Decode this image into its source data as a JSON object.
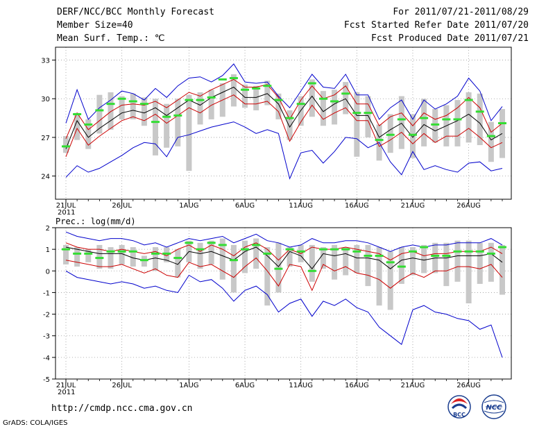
{
  "header": {
    "title": "DERF/NCC/BCC Monthly Forecast",
    "member_size": "Member Size=40",
    "variable": "Mean Surf. Temp.: ℃",
    "period": "For 2011/07/21-2011/08/29",
    "started": "Fcst Started Refer Date 2011/07/20",
    "produced": "Fcst Produced Date 2011/07/21"
  },
  "footer": {
    "url": "http://cmdp.ncc.cma.gov.cn",
    "grads": "GrADS: COLA/IGES",
    "logo1_text": "BCC",
    "logo2_text": "NCC"
  },
  "colors": {
    "max_min": "#0000cc",
    "std": "#cc0000",
    "mean": "#000000",
    "median": "#33dd33",
    "box": "#c8c8c8",
    "frame": "#000000",
    "grid": "#999999"
  },
  "chart_data": [
    {
      "type": "line",
      "title": "Mean Surf. Temp.: ℃",
      "x_start_label": "21JUL",
      "year_label": "2011",
      "xtick_labels": [
        "21JUL",
        "26JUL",
        "1AUG",
        "6AUG",
        "11AUG",
        "16AUG",
        "21AUG",
        "26AUG"
      ],
      "xtick_days": [
        0,
        5,
        11,
        16,
        21,
        26,
        31,
        36
      ],
      "ylim": [
        22.2,
        34.0
      ],
      "yticks": [
        24,
        27,
        30,
        33
      ],
      "days": 40,
      "series": [
        {
          "name": "max",
          "values": [
            28.1,
            30.7,
            28.4,
            29.3,
            29.9,
            30.6,
            30.4,
            29.9,
            30.8,
            30.1,
            31.0,
            31.6,
            31.7,
            31.3,
            31.8,
            32.7,
            31.3,
            31.2,
            31.3,
            30.2,
            29.3,
            30.6,
            31.9,
            30.9,
            30.8,
            31.9,
            30.3,
            30.3,
            28.4,
            29.3,
            29.9,
            28.4,
            29.9,
            29.2,
            29.6,
            30.2,
            31.6,
            30.6,
            28.3,
            29.4
          ]
        },
        {
          "name": "std_upper",
          "values": [
            26.9,
            28.9,
            27.6,
            28.3,
            29.0,
            29.5,
            29.6,
            29.5,
            29.8,
            29.3,
            29.9,
            30.5,
            30.2,
            30.7,
            31.1,
            31.5,
            30.9,
            30.9,
            31.1,
            30.1,
            28.4,
            29.9,
            31.0,
            30.0,
            30.3,
            31.0,
            29.6,
            29.6,
            27.9,
            28.6,
            28.9,
            27.9,
            28.9,
            28.4,
            28.7,
            29.3,
            30.1,
            29.3,
            27.4,
            28.1
          ]
        },
        {
          "name": "mean",
          "values": [
            26.1,
            28.3,
            27.0,
            27.7,
            28.3,
            28.9,
            29.1,
            28.9,
            29.3,
            28.7,
            29.3,
            29.9,
            29.5,
            30.1,
            30.5,
            30.9,
            30.1,
            30.1,
            30.4,
            29.6,
            27.8,
            29.1,
            30.2,
            29.0,
            29.6,
            30.0,
            28.7,
            28.7,
            27.0,
            27.6,
            28.1,
            27.0,
            28.0,
            27.5,
            27.9,
            28.3,
            28.8,
            28.1,
            26.8,
            27.3
          ]
        },
        {
          "name": "std_lower",
          "values": [
            25.5,
            27.7,
            26.4,
            27.1,
            27.7,
            28.3,
            28.6,
            28.3,
            28.8,
            28.1,
            28.7,
            29.3,
            28.9,
            29.5,
            29.9,
            30.3,
            29.6,
            29.6,
            29.8,
            29.0,
            26.7,
            28.2,
            29.5,
            28.4,
            28.9,
            29.3,
            28.3,
            28.3,
            26.3,
            26.8,
            27.4,
            26.5,
            27.3,
            26.6,
            27.1,
            27.1,
            27.7,
            27.0,
            26.2,
            26.6
          ]
        },
        {
          "name": "min",
          "values": [
            23.9,
            24.8,
            24.3,
            24.6,
            25.1,
            25.6,
            26.2,
            26.6,
            26.5,
            25.5,
            27.0,
            27.2,
            27.5,
            27.8,
            28.0,
            28.2,
            27.8,
            27.3,
            27.6,
            27.3,
            23.8,
            25.8,
            26.0,
            25.0,
            25.9,
            27.0,
            26.9,
            26.2,
            26.6,
            25.1,
            24.1,
            25.9,
            24.5,
            24.8,
            24.5,
            24.3,
            25.0,
            25.1,
            24.4,
            24.6
          ]
        },
        {
          "name": "median",
          "values": [
            26.3,
            28.8,
            28.0,
            29.1,
            29.6,
            30.0,
            29.8,
            29.6,
            28.2,
            28.6,
            28.7,
            29.9,
            29.9,
            30.1,
            31.5,
            31.6,
            30.7,
            30.8,
            31.0,
            29.9,
            28.5,
            29.6,
            31.2,
            30.0,
            29.8,
            30.4,
            28.9,
            28.9,
            26.8,
            27.2,
            28.4,
            27.2,
            28.5,
            28.0,
            28.4,
            28.4,
            29.9,
            29.0,
            27.1,
            28.1
          ]
        },
        {
          "name": "box_high",
          "values": [
            27.1,
            28.9,
            28.4,
            30.3,
            30.5,
            30.2,
            30.4,
            30.1,
            30.0,
            29.6,
            30.0,
            30.3,
            30.5,
            30.7,
            31.2,
            31.9,
            31.1,
            31.0,
            31.4,
            30.4,
            29.1,
            30.2,
            31.5,
            30.6,
            30.7,
            31.3,
            30.5,
            30.2,
            28.0,
            28.8,
            30.2,
            28.8,
            30.0,
            29.2,
            29.5,
            29.9,
            30.5,
            30.4,
            28.2,
            29.2
          ]
        },
        {
          "name": "box_low",
          "values": [
            25.8,
            26.8,
            26.1,
            27.3,
            27.6,
            28.4,
            28.4,
            27.9,
            25.6,
            26.2,
            26.3,
            24.4,
            28.0,
            28.4,
            28.6,
            29.4,
            29.3,
            29.1,
            29.5,
            28.4,
            26.8,
            27.9,
            28.6,
            27.9,
            28.0,
            28.8,
            25.5,
            27.0,
            25.2,
            25.8,
            26.1,
            25.4,
            26.3,
            26.6,
            26.3,
            26.3,
            26.6,
            26.4,
            25.1,
            25.4
          ]
        }
      ]
    },
    {
      "type": "line",
      "title": "Prec.: log(mm/d)",
      "x_start_label": "21JUL",
      "year_label": "2011",
      "xtick_labels": [
        "21JUL",
        "26JUL",
        "1AUG",
        "6AUG",
        "11AUG",
        "16AUG",
        "21AUG",
        "26AUG"
      ],
      "xtick_days": [
        0,
        5,
        11,
        16,
        21,
        26,
        31,
        36
      ],
      "ylim": [
        -5,
        2
      ],
      "yticks": [
        -5,
        -4,
        -3,
        -2,
        -1,
        0,
        1,
        2
      ],
      "days": 40,
      "series": [
        {
          "name": "max",
          "values": [
            1.8,
            1.6,
            1.5,
            1.4,
            1.5,
            1.5,
            1.4,
            1.2,
            1.3,
            1.1,
            1.3,
            1.5,
            1.4,
            1.5,
            1.6,
            1.3,
            1.5,
            1.7,
            1.4,
            1.3,
            1.1,
            1.2,
            1.5,
            1.3,
            1.3,
            1.4,
            1.4,
            1.3,
            1.1,
            0.9,
            1.1,
            1.2,
            1.1,
            1.2,
            1.2,
            1.3,
            1.3,
            1.3,
            1.5,
            1.2
          ]
        },
        {
          "name": "std_upper",
          "values": [
            1.3,
            1.1,
            1.0,
            1.0,
            0.9,
            1.0,
            0.9,
            0.8,
            0.9,
            0.7,
            1.0,
            1.2,
            0.9,
            1.2,
            1.0,
            0.7,
            1.1,
            1.3,
            1.0,
            0.5,
            1.0,
            0.8,
            1.1,
            1.0,
            1.0,
            1.1,
            1.0,
            0.9,
            0.8,
            0.5,
            0.8,
            0.9,
            0.7,
            0.8,
            0.8,
            0.9,
            0.9,
            0.9,
            1.1,
            0.8
          ]
        },
        {
          "name": "mean",
          "values": [
            1.1,
            1.0,
            0.9,
            0.8,
            0.8,
            0.8,
            0.6,
            0.5,
            0.6,
            0.5,
            0.3,
            0.9,
            0.8,
            0.9,
            0.7,
            0.5,
            0.9,
            1.1,
            0.7,
            0.2,
            0.9,
            0.7,
            0.1,
            0.8,
            0.7,
            0.8,
            0.6,
            0.6,
            0.5,
            0.1,
            0.5,
            0.6,
            0.5,
            0.6,
            0.6,
            0.7,
            0.7,
            0.7,
            0.8,
            0.4
          ]
        },
        {
          "name": "std_lower",
          "values": [
            0.5,
            0.4,
            0.3,
            0.2,
            0.2,
            0.3,
            0.1,
            -0.1,
            0.1,
            -0.2,
            -0.3,
            0.4,
            0.2,
            0.3,
            0.0,
            -0.3,
            0.2,
            0.6,
            0.0,
            -0.7,
            0.3,
            0.2,
            -0.9,
            0.3,
            0.0,
            0.2,
            -0.1,
            -0.2,
            -0.4,
            -0.8,
            -0.4,
            -0.1,
            -0.3,
            0.0,
            0.0,
            0.2,
            0.2,
            0.1,
            0.3,
            -0.3
          ]
        },
        {
          "name": "min",
          "values": [
            0.0,
            -0.3,
            -0.4,
            -0.5,
            -0.6,
            -0.5,
            -0.6,
            -0.8,
            -0.7,
            -0.9,
            -1.0,
            -0.2,
            -0.5,
            -0.4,
            -0.8,
            -1.4,
            -0.9,
            -0.7,
            -1.1,
            -1.9,
            -1.5,
            -1.3,
            -2.1,
            -1.4,
            -1.6,
            -1.3,
            -1.7,
            -1.9,
            -2.6,
            -3.0,
            -3.4,
            -1.8,
            -1.6,
            -1.9,
            -2.0,
            -2.2,
            -2.3,
            -2.7,
            -2.5,
            -4.0
          ]
        },
        {
          "name": "median",
          "values": [
            1.0,
            0.8,
            0.8,
            0.6,
            0.9,
            0.9,
            0.9,
            0.5,
            0.8,
            0.8,
            0.6,
            1.3,
            1.0,
            1.3,
            1.2,
            0.5,
            1.0,
            1.2,
            0.8,
            0.1,
            1.0,
            0.9,
            0.0,
            1.0,
            1.0,
            1.0,
            0.9,
            0.7,
            0.7,
            0.4,
            0.2,
            0.9,
            1.1,
            0.7,
            0.7,
            0.9,
            0.9,
            0.9,
            0.8,
            1.1
          ]
        },
        {
          "name": "box_high",
          "values": [
            1.2,
            1.1,
            1.0,
            1.2,
            1.1,
            1.2,
            1.1,
            0.7,
            1.1,
            1.1,
            1.0,
            1.4,
            1.3,
            1.4,
            1.5,
            1.2,
            1.4,
            1.5,
            1.1,
            1.3,
            1.1,
            1.2,
            1.2,
            1.1,
            1.2,
            1.1,
            1.2,
            1.2,
            1.1,
            0.9,
            1.1,
            1.1,
            1.2,
            1.3,
            1.3,
            1.4,
            1.4,
            1.3,
            1.3,
            1.2
          ]
        },
        {
          "name": "box_low",
          "values": [
            0.3,
            0.2,
            0.4,
            0.1,
            0.1,
            0.3,
            0.2,
            0.2,
            0.0,
            0.4,
            -0.3,
            0.4,
            0.1,
            0.3,
            -0.4,
            -1.0,
            -0.1,
            0.1,
            -1.6,
            -1.0,
            0.2,
            0.4,
            -0.5,
            0.1,
            -0.4,
            -0.2,
            -0.1,
            -0.7,
            -1.6,
            -1.8,
            -0.6,
            -0.2,
            -0.1,
            -0.1,
            -0.7,
            -0.5,
            -1.5,
            -0.6,
            -0.5,
            -1.1
          ]
        }
      ]
    }
  ]
}
